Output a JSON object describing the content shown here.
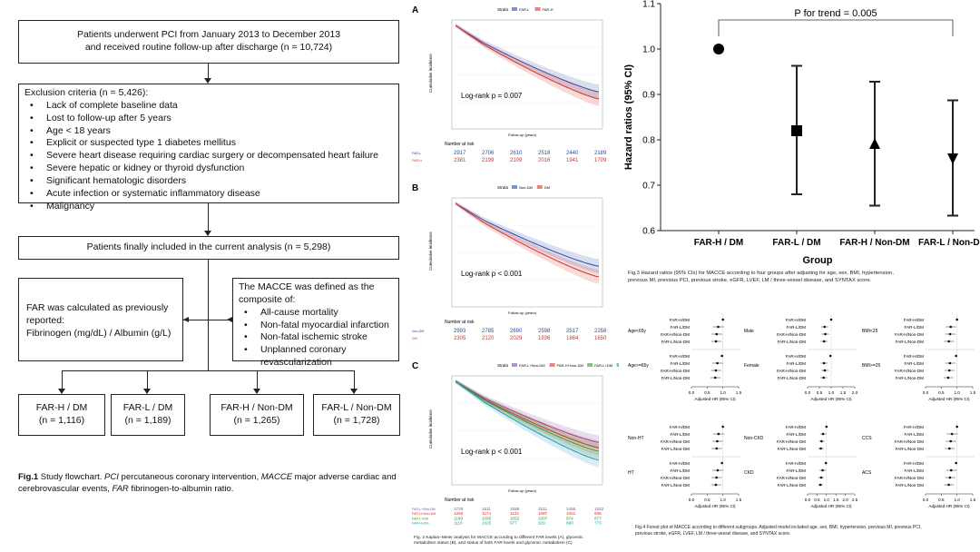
{
  "flowchart": {
    "box1": [
      "Patients underwent PCI from January 2013 to December 2013",
      "and received routine follow-up after discharge (n = 10,724)"
    ],
    "exclusion_title": "Exclusion criteria (n = 5,426):",
    "exclusion_items": [
      "Lack of complete baseline data",
      "Lost to follow-up after 5 years",
      "Age  <  18 years",
      "Explicit or suspected type 1 diabetes mellitus",
      "Severe heart disease requiring cardiac surgery or decompensated heart failure",
      "Severe hepatic or kidney or thyroid dysfunction",
      "Significant hematologic disorders",
      "Acute infection or systematic inflammatory disease",
      "Malignancy"
    ],
    "included": "Patients finally included in the current analysis (n = 5,298)",
    "far_box": [
      "FAR was calculated as previously",
      "reported:",
      "Fibrinogen (mg/dL) / Albumin (g/L)"
    ],
    "macce_title": [
      "The MACCE was defined as the",
      "composite of:"
    ],
    "macce_items": [
      "All-cause mortality",
      "Non-fatal myocardial infarction",
      "Non-fatal ischemic stroke",
      "Unplanned coronary revascularization"
    ],
    "groups": [
      {
        "label": "FAR-H / DM",
        "n": "(n = 1,116)"
      },
      {
        "label": "FAR-L / DM",
        "n": "(n = 1,189)"
      },
      {
        "label": "FAR-H / Non-DM",
        "n": "(n = 1,265)"
      },
      {
        "label": "FAR-L / Non-DM",
        "n": "(n = 1,728)"
      }
    ],
    "caption": {
      "fig": "Fig.1",
      "t1": " Study flowchart. ",
      "pci": "PCI",
      "t2": " percutaneous coronary intervention, ",
      "macce": "MACCE",
      "t3": " major adverse cardiac and cerebrovascular events, ",
      "far": "FAR",
      "t4": " fibrinogen-to-albumin ratio."
    }
  },
  "km": {
    "panels": [
      {
        "letter": "A",
        "strata_label": "Strata",
        "legend": [
          "FAR-L",
          "FAR-H"
        ],
        "pvalue": "Log-rank p = 0.007",
        "ylabel": "Cumulative incidence",
        "xlabel": "Follow-up (years)",
        "risk_title": "Number at risk",
        "risk_rows": [
          {
            "label": "FAR-L",
            "values": [
              "2917",
              "2706",
              "2610",
              "2518",
              "2440",
              "2189"
            ]
          },
          {
            "label": "FAR-H",
            "values": [
              "2381",
              "2199",
              "2109",
              "2016",
              "1941",
              "1709"
            ]
          }
        ]
      },
      {
        "letter": "B",
        "strata_label": "Strata",
        "legend": [
          "Non-DM",
          "DM"
        ],
        "pvalue": "Log-rank p < 0.001",
        "ylabel": "Cumulative incidence",
        "xlabel": "Follow-up (years)",
        "risk_title": "Number at risk",
        "risk_rows": [
          {
            "label": "Non-DM",
            "values": [
              "2993",
              "2785",
              "2690",
              "2598",
              "2517",
              "2258"
            ]
          },
          {
            "label": "DM",
            "values": [
              "2305",
              "2120",
              "2029",
              "1936",
              "1864",
              "1650"
            ]
          }
        ]
      },
      {
        "letter": "C",
        "strata_label": "Strata",
        "legend": [
          "FAR-L+Non-DM",
          "FAR-H+Non-DM",
          "FAR-L+DM",
          "FAR-H+DM"
        ],
        "pvalue": "Log-rank p < 0.001",
        "ylabel": "Cumulative incidence",
        "xlabel": "Follow-up (years)",
        "risk_title": "Number at risk",
        "risk_rows": [
          {
            "label": "FAR-L+Non-DM",
            "values": [
              "1728",
              "1611",
              "1558",
              "1511",
              "1466",
              "1322"
            ]
          },
          {
            "label": "FAR-H+Non-DM",
            "values": [
              "1265",
              "1174",
              "1132",
              "1087",
              "1051",
              "936"
            ]
          },
          {
            "label": "FAR-L+DM",
            "values": [
              "1189",
              "1095",
              "1052",
              "1007",
              "974",
              "877"
            ]
          },
          {
            "label": "FAR-H+DM",
            "values": [
              "1116",
              "1025",
              "977",
              "929",
              "890",
              "773"
            ]
          }
        ]
      }
    ],
    "caption": [
      "Fig. 2 Kaplan–Meier analysis for MACCE according to different FAR levels (A), glycemic",
      "metabolism status (B), and status of both FAR levels and glycemic metabolism (C)"
    ]
  },
  "chart_data": [
    {
      "type": "scatter",
      "title": "P for trend = 0.005",
      "xlabel": "Group",
      "ylabel": "Hazard ratios (95% CI)",
      "categories": [
        "FAR-H / DM",
        "FAR-L / DM",
        "FAR-H / Non-DM",
        "FAR-L / Non-DM"
      ],
      "values": [
        1.0,
        0.82,
        0.79,
        0.76
      ],
      "ci_low": [
        null,
        0.68,
        0.655,
        0.633
      ],
      "ci_high": [
        null,
        0.963,
        0.928,
        0.887
      ],
      "markers": [
        "circle",
        "square",
        "triangle-up",
        "triangle-down"
      ],
      "ylim": [
        0.6,
        1.1
      ],
      "yticks": [
        "0.6",
        "0.7",
        "0.8",
        "0.9",
        "1.0",
        "1.1"
      ]
    }
  ],
  "fig3_caption": [
    "Fig.3 Hazard ratios (95% CIs) for MACCE according to four groups after adjusting for age, sex, BMI, hypertension,",
    "previous MI, previous PCI, previous stroke, eGFR, LVEF, LM / three-vessel disease, and SYNTAX score."
  ],
  "forest": {
    "row_labels": [
      "FAR-H/DM",
      "FAR-L/DM",
      "FAR-H/Non-DM",
      "FAR-L/Non-DM"
    ],
    "xlabel": "Adjusted HR (95% CI)",
    "panels": [
      {
        "top": "Age<65y",
        "bottom": "Age>=65y",
        "ticks": [
          "0.0",
          "0.5",
          "1.0",
          "1.5"
        ]
      },
      {
        "top": "Male",
        "bottom": "Female",
        "ticks": [
          "0.0",
          "0.5",
          "1.0",
          "1.5",
          "2.0"
        ]
      },
      {
        "top": "BMI<25",
        "bottom": "BMI>=25",
        "ticks": [
          "0.0",
          "0.5",
          "1.0",
          "1.5"
        ]
      },
      {
        "top": "Non-HT",
        "bottom": "HT",
        "ticks": [
          "0.0",
          "0.5",
          "1.0",
          "1.5"
        ]
      },
      {
        "top": "Non-CKD",
        "bottom": "CKD",
        "ticks": [
          "0.0",
          "0.5",
          "1.0",
          "1.5",
          "2.0",
          "2.5"
        ]
      },
      {
        "top": "CCS",
        "bottom": "ACS",
        "ticks": [
          "0.0",
          "0.5",
          "1.0",
          "1.5"
        ]
      }
    ],
    "caption": [
      "Fig.4 Forest plot of MACCE according to different subgroups. Adjusted model included age, sex, BMI, hypertension, previous MI, previous PCI,",
      "previous stroke, eGFR, LVEF, LM / three-vessel disease, and SYNTAX score."
    ]
  },
  "colors": {
    "blue": "#2b4da8",
    "red": "#d8312c",
    "green": "#2e9a2e",
    "teal": "#1f95b5",
    "line": "#222222"
  }
}
